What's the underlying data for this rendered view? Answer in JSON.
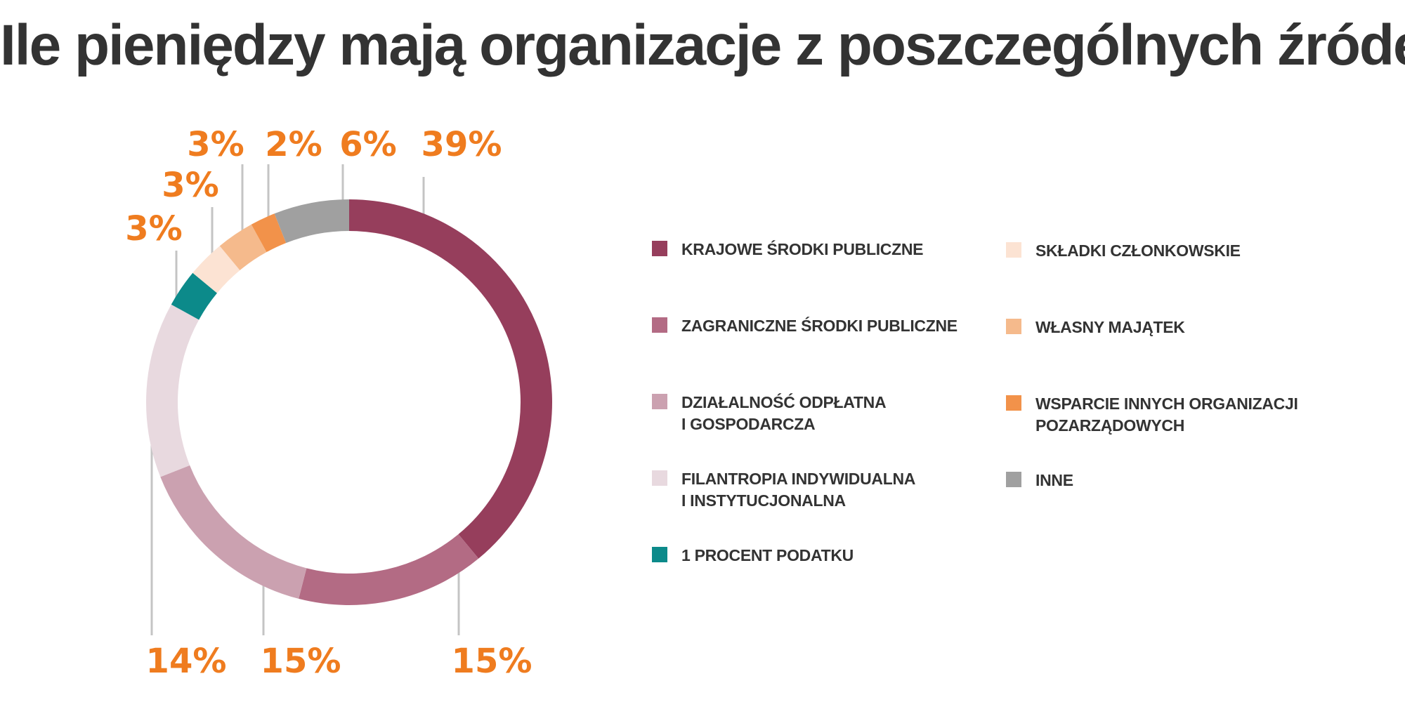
{
  "title": "Ile pieniędzy mają organizacje  z poszczególnych źródeł?",
  "chart_data": {
    "type": "pie",
    "title": "Ile pieniędzy mają organizacje  z poszczególnych źródeł?",
    "slices": [
      {
        "label": "KRAJOWE ŚRODKI PUBLICZNE",
        "value": 39,
        "value_label": "39%",
        "color": "#963E5C"
      },
      {
        "label": "ZAGRANICZNE ŚRODKI PUBLICZNE",
        "value": 15,
        "value_label": "15%",
        "color": "#B36B84"
      },
      {
        "label": "DZIAŁALNOŚĆ ODPŁATNA\nI GOSPODARCZA",
        "value": 15,
        "value_label": "15%",
        "color": "#CBA1B0"
      },
      {
        "label": "FILANTROPIA INDYWIDUALNA\nI INSTYTUCJONALNA",
        "value": 14,
        "value_label": "14%",
        "color": "#E8D9DF"
      },
      {
        "label": "1 PROCENT PODATKU",
        "value": 3,
        "value_label": "3%",
        "color": "#0C8A8A"
      },
      {
        "label": "SKŁADKI CZŁONKOWSKIE",
        "value": 3,
        "value_label": "3%",
        "color": "#FCE3D3"
      },
      {
        "label": "WŁASNY MAJĄTEK",
        "value": 3,
        "value_label": "3%",
        "color": "#F5BA8C"
      },
      {
        "label": "WSPARCIE INNYCH ORGANIZACJI\nPOZARZĄDOWYCH",
        "value": 2,
        "value_label": "2%",
        "color": "#F2924A"
      },
      {
        "label": "INNE",
        "value": 6,
        "value_label": "6%",
        "color": "#A0A0A0"
      }
    ],
    "legend_placement": "right",
    "label_color": "#EF7C1F",
    "leader_color": "#C4C4C4"
  }
}
